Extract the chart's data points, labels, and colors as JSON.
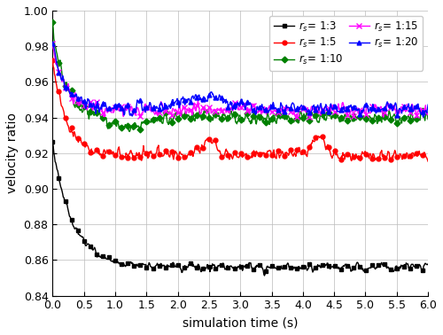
{
  "title": "",
  "xlabel": "simulation time (s)",
  "ylabel": "velocity ratio",
  "xlim": [
    0,
    6.0
  ],
  "ylim": [
    0.84,
    1.0
  ],
  "yticks": [
    0.84,
    0.86,
    0.88,
    0.9,
    0.92,
    0.94,
    0.96,
    0.98,
    1.0
  ],
  "xticks": [
    0.0,
    0.5,
    1.0,
    1.5,
    2.0,
    2.5,
    3.0,
    3.5,
    4.0,
    4.5,
    5.0,
    5.5,
    6.0
  ],
  "series": {
    "1:3": {
      "color": "#000000",
      "marker": "s",
      "markersize": 3.5,
      "linewidth": 1.0
    },
    "1:5": {
      "color": "#ff0000",
      "marker": "o",
      "markersize": 3.5,
      "linewidth": 1.0
    },
    "1:10": {
      "color": "#008000",
      "marker": "D",
      "markersize": 3.5,
      "linewidth": 1.0
    },
    "1:15": {
      "color": "#ff00ff",
      "marker": "x",
      "markersize": 4.0,
      "linewidth": 1.0
    },
    "1:20": {
      "color": "#0000ff",
      "marker": "^",
      "markersize": 3.5,
      "linewidth": 1.0
    }
  },
  "legend_col1": [
    "1:3",
    "1:10",
    "1:20"
  ],
  "legend_col2": [
    "1:5",
    "1:15"
  ],
  "legend_labels": {
    "1:3": "$r_s$= 1:3",
    "1:5": "$r_s$= 1:5",
    "1:10": "$r_s$= 1:10",
    "1:15": "$r_s$= 1:15",
    "1:20": "$r_s$= 1:20"
  },
  "grid": true,
  "figsize": [
    5.0,
    3.78
  ],
  "dpi": 100
}
